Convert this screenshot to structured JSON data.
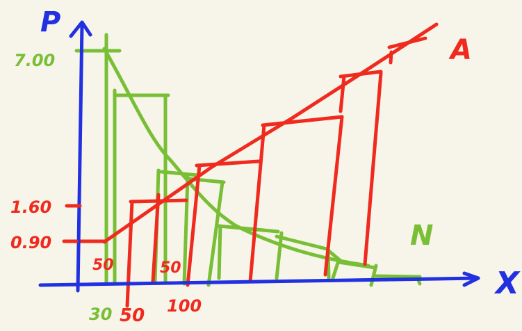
{
  "labels": {
    "y_axis": "P",
    "x_axis": "X",
    "y_tick_top": "7.00",
    "y_tick_mid": "1.60",
    "y_tick_low": "0.90",
    "x_tick_1": "30",
    "x_tick_2": "50",
    "x_tick_3": "100",
    "inner_red_50": "50",
    "inner_green_50": "50",
    "curve_a": "A",
    "curve_n": "N"
  },
  "colors": {
    "axis": "#2130e0",
    "red": "#ef2a1e",
    "green": "#78bf35",
    "background": "#f7f4e9"
  }
}
